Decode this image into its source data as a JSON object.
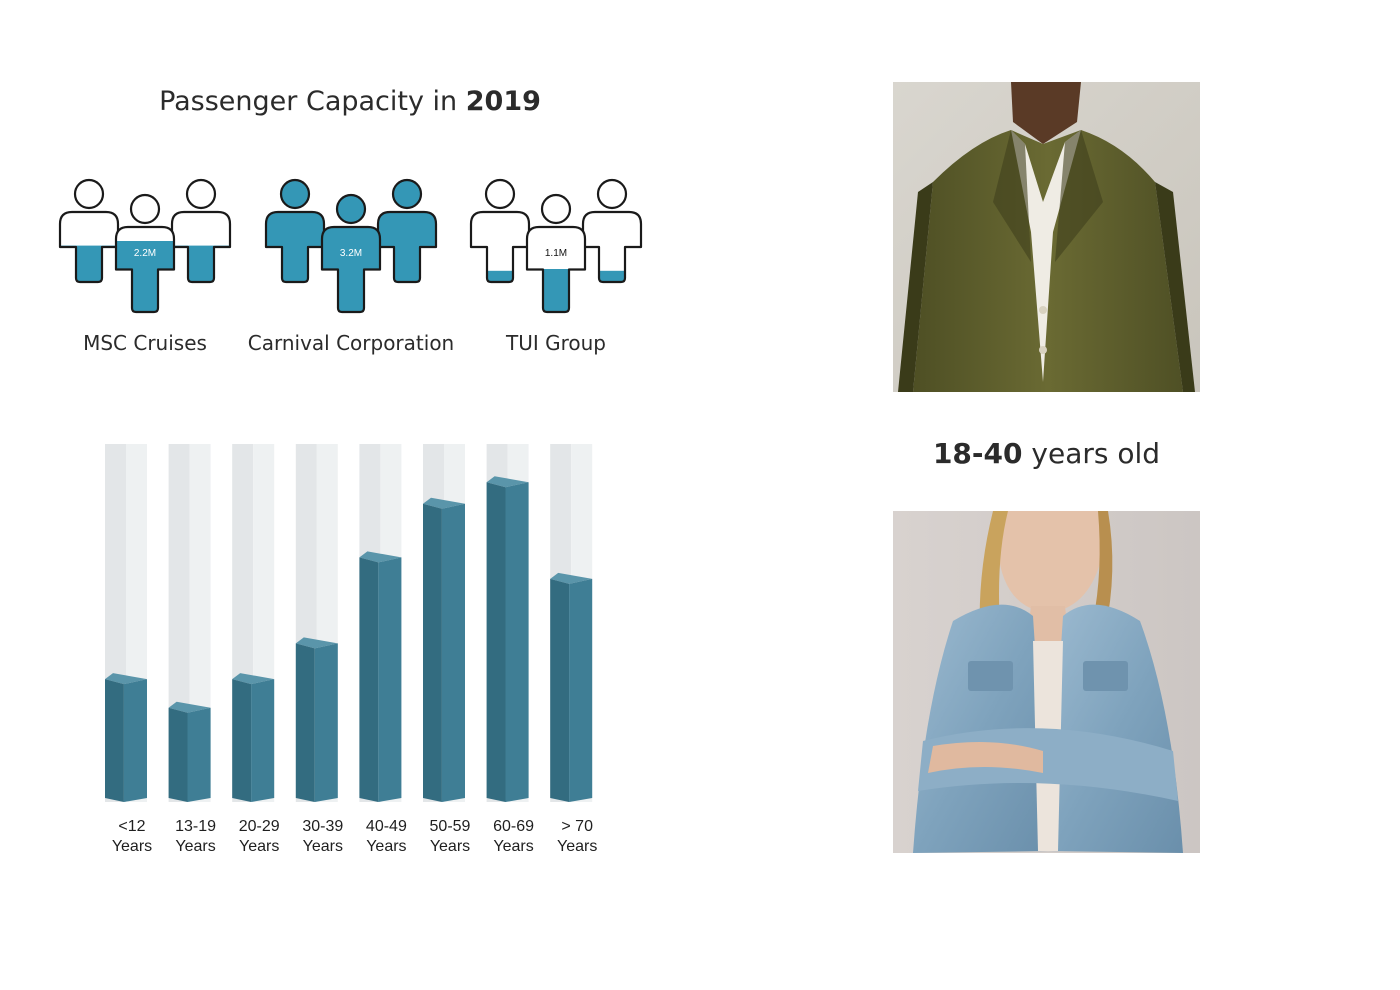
{
  "title": {
    "prefix": "Passenger Capacity in",
    "year": "2019"
  },
  "companies": [
    {
      "name": "MSC Cruises",
      "value_label": "2.2M",
      "fill": 0.42,
      "style": "partial"
    },
    {
      "name": "Carnival Corporation",
      "value_label": "3.2M",
      "fill": 1.0,
      "style": "full"
    },
    {
      "name": "TUI Group",
      "value_label": "1.1M",
      "fill": 0.15,
      "style": "partial"
    }
  ],
  "chart_data": {
    "type": "bar",
    "categories": [
      [
        "<12",
        "Years"
      ],
      [
        "13-19",
        "Years"
      ],
      [
        "20-29",
        "Years"
      ],
      [
        "30-39",
        "Years"
      ],
      [
        "40-49",
        "Years"
      ],
      [
        "50-59",
        "Years"
      ],
      [
        "60-69",
        "Years"
      ],
      [
        "> 70",
        "Years"
      ]
    ],
    "values": [
      36,
      28,
      36,
      46,
      70,
      85,
      91,
      64
    ],
    "ylim": [
      0,
      100
    ],
    "colors": {
      "front": "#3f7e95",
      "side": "#336c80",
      "top": "#5a95aa",
      "track_front": "#eef1f2",
      "track_side": "#e3e6e8"
    }
  },
  "audience": {
    "range": "18-40",
    "suffix": "years old"
  },
  "photos": {
    "top": {
      "icon": "man-in-olive-blazer-photo"
    },
    "bottom": {
      "icon": "woman-in-denim-jacket-photo"
    }
  },
  "colors": {
    "accent": "#3497b6",
    "outline": "#1a1a1a"
  }
}
